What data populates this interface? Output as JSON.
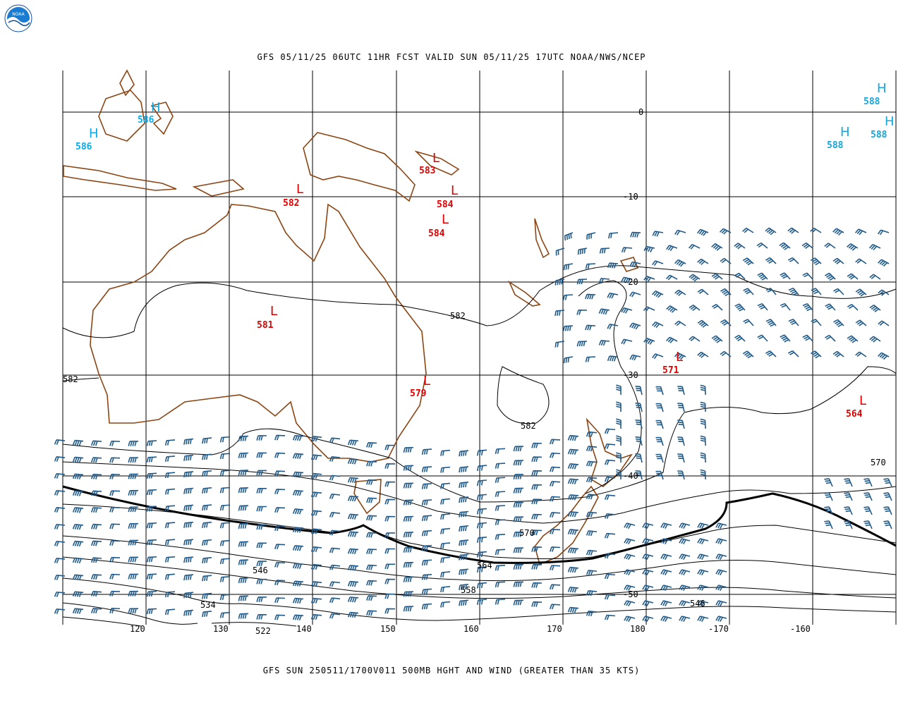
{
  "logo": {
    "text": "NOAA"
  },
  "header": {
    "title": "GFS 05/11/25 06UTC 11HR FCST VALID SUN 05/11/25 17UTC NOAA/NWS/NCEP"
  },
  "footer": {
    "title": "GFS SUN 250511/1700V011 500MB HGHT AND WIND (GREATER THAN 35 KTS)"
  },
  "lat_labels": [
    "0",
    "-10",
    "-20",
    "-30",
    "-40",
    "-50"
  ],
  "lon_labels": [
    "120",
    "130",
    "140",
    "150",
    "160",
    "170",
    "180",
    "-170",
    "-160"
  ],
  "contour_labels": [
    "582",
    "582",
    "582",
    "570",
    "570",
    "564",
    "558",
    "546",
    "546",
    "534",
    "522"
  ],
  "lows": [
    {
      "label": "L",
      "value": "583"
    },
    {
      "label": "L",
      "value": "584"
    },
    {
      "label": "L",
      "value": "584"
    },
    {
      "label": "L",
      "value": "582"
    },
    {
      "label": "L",
      "value": "581"
    },
    {
      "label": "L",
      "value": "579"
    },
    {
      "label": "L",
      "value": "571"
    },
    {
      "label": "L",
      "value": "564"
    }
  ],
  "highs": [
    {
      "label": "H",
      "value": "586"
    },
    {
      "label": "H",
      "value": "586"
    },
    {
      "label": "H",
      "value": "588"
    },
    {
      "label": "H",
      "value": "588"
    },
    {
      "label": "H",
      "value": "588"
    }
  ],
  "colors": {
    "coast": "#8b4513",
    "barbs": "#1f5a8a",
    "low": "#e00000",
    "high": "#10a8e0"
  }
}
